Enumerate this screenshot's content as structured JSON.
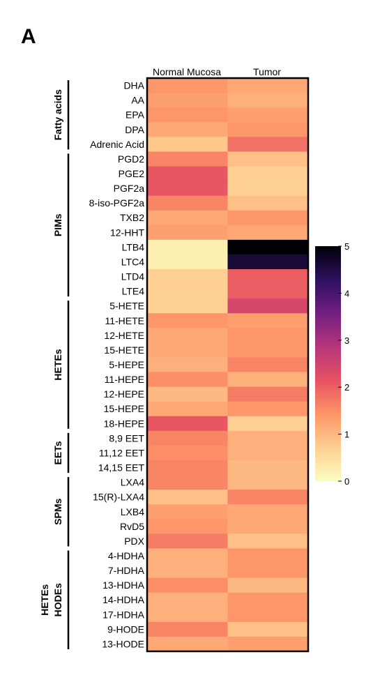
{
  "panel_label": "A",
  "colors": {
    "scale": [
      "#fcfdbf",
      "#fecf92",
      "#fd9567",
      "#e75263",
      "#b5367a",
      "#721f81",
      "#2c115f",
      "#000004"
    ]
  },
  "chart_data": {
    "type": "heatmap",
    "columns": [
      "Normal Mucosa",
      "Tumor"
    ],
    "rows": [
      "DHA",
      "AA",
      "EPA",
      "DPA",
      "Adrenic Acid",
      "PGD2",
      "PGE2",
      "PGF2a",
      "8-iso-PGF2a",
      "TXB2",
      "12-HHT",
      "LTB4",
      "LTC4",
      "LTD4",
      "LTE4",
      "5-HETE",
      "11-HETE",
      "12-HETE",
      "15-HETE",
      "5-HEPE",
      "11-HEPE",
      "12-HEPE",
      "15-HEPE",
      "18-HEPE",
      "8,9 EET",
      "11,12 EET",
      "14,15 EET",
      "LXA4",
      "15(R)-LXA4",
      "LXB4",
      "RvD5",
      "PDX",
      "4-HDHA",
      "7-HDHA",
      "13-HDHA",
      "14-HDHA",
      "17-HDHA",
      "9-HODE",
      "13-HODE"
    ],
    "values": [
      [
        1.4,
        1.2
      ],
      [
        1.3,
        1.1
      ],
      [
        1.4,
        1.3
      ],
      [
        1.2,
        1.4
      ],
      [
        0.8,
        1.8
      ],
      [
        1.6,
        0.9
      ],
      [
        2.1,
        0.7
      ],
      [
        2.1,
        0.7
      ],
      [
        1.6,
        0.9
      ],
      [
        1.2,
        1.4
      ],
      [
        1.3,
        1.2
      ],
      [
        0.2,
        5.0
      ],
      [
        0.2,
        4.6
      ],
      [
        0.7,
        2.0
      ],
      [
        0.7,
        2.0
      ],
      [
        0.7,
        2.4
      ],
      [
        1.4,
        1.3
      ],
      [
        1.2,
        1.4
      ],
      [
        1.2,
        1.4
      ],
      [
        1.1,
        1.6
      ],
      [
        1.5,
        1.1
      ],
      [
        1.0,
        1.7
      ],
      [
        1.2,
        1.4
      ],
      [
        2.1,
        0.7
      ],
      [
        1.6,
        1.1
      ],
      [
        1.5,
        1.1
      ],
      [
        1.6,
        1.0
      ],
      [
        1.6,
        1.0
      ],
      [
        0.9,
        1.6
      ],
      [
        1.3,
        1.2
      ],
      [
        1.4,
        1.2
      ],
      [
        1.7,
        0.9
      ],
      [
        1.1,
        1.4
      ],
      [
        1.1,
        1.4
      ],
      [
        1.5,
        1.0
      ],
      [
        1.1,
        1.4
      ],
      [
        1.1,
        1.4
      ],
      [
        1.6,
        0.9
      ],
      [
        1.2,
        1.3
      ]
    ],
    "groups": [
      {
        "label": "Fatty acids",
        "rows": [
          "DHA",
          "Adrenic Acid"
        ]
      },
      {
        "label": "PIMs",
        "rows": [
          "PGD2",
          "LTE4"
        ]
      },
      {
        "label": "HETEs",
        "rows": [
          "5-HETE",
          "18-HEPE"
        ]
      },
      {
        "label": "EETs",
        "rows": [
          "8,9 EET",
          "14,15 EET"
        ]
      },
      {
        "label": "SPMs",
        "rows": [
          "LXA4",
          "PDX"
        ]
      },
      {
        "label": [
          "HETEs",
          "HODEs"
        ],
        "rows": [
          "4-HDHA",
          "13-HODE"
        ]
      }
    ],
    "colorbar": {
      "min": 0,
      "max": 5,
      "ticks": [
        "0",
        "1",
        "2",
        "3",
        "4",
        "5"
      ],
      "colormap": "magma_r"
    }
  }
}
